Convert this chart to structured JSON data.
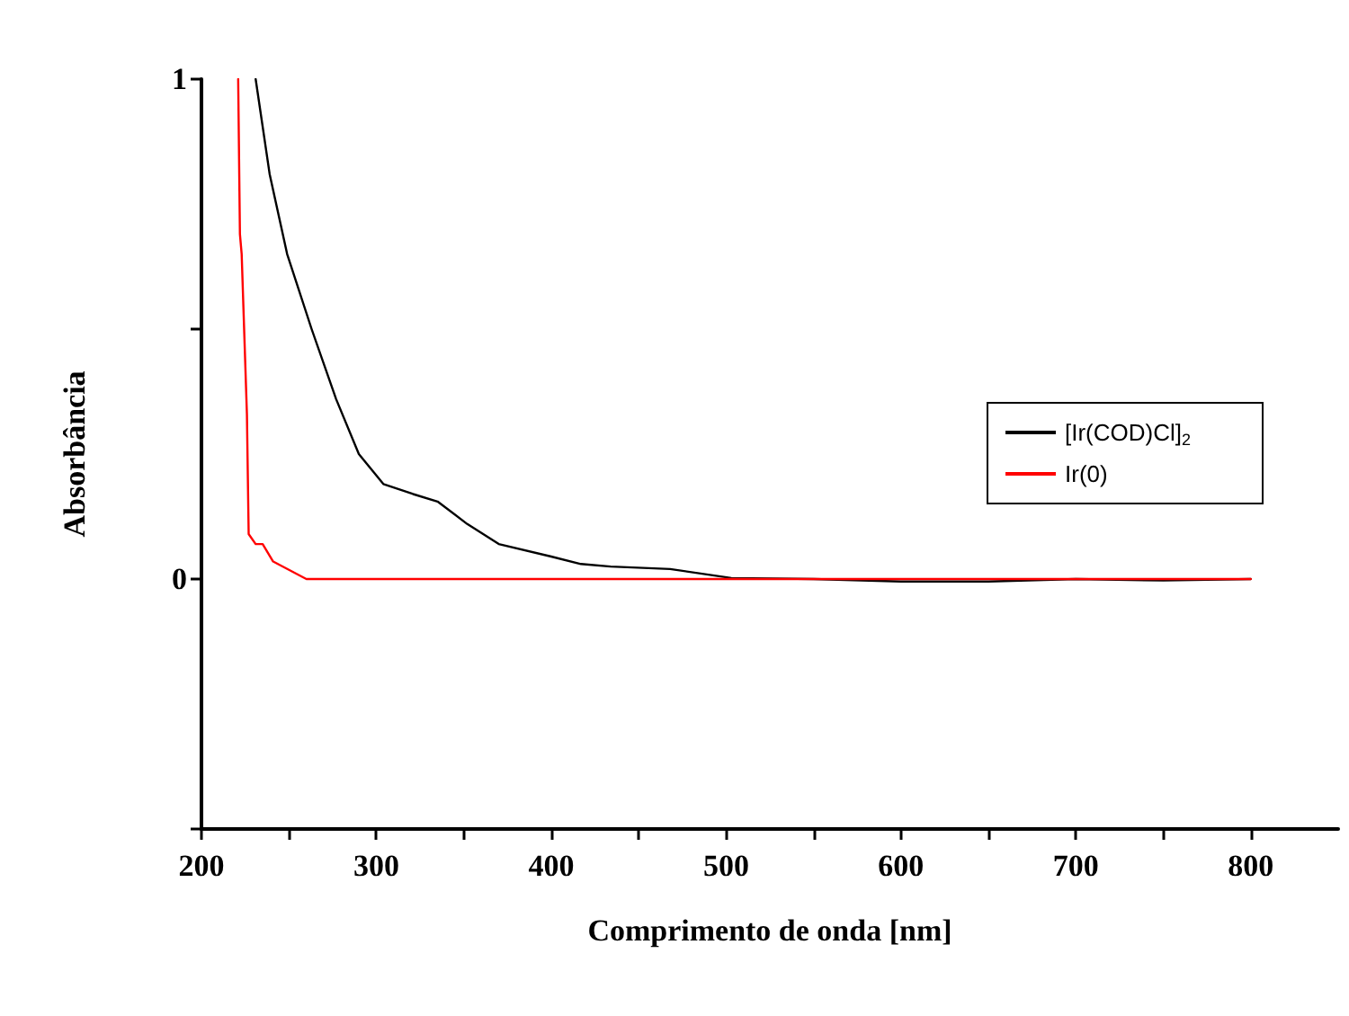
{
  "chart_data": {
    "type": "line",
    "xlabel": "Comprimento de onda [nm]",
    "ylabel": "Absorbância",
    "xlim": [
      200,
      850
    ],
    "xticks": [
      200,
      {
        "value": 250,
        "label": null
      },
      300,
      {
        "value": 350,
        "label": null
      },
      400,
      {
        "value": 450,
        "label": null
      },
      500,
      {
        "value": 550,
        "label": null
      },
      600,
      {
        "value": 650,
        "label": null
      },
      700,
      {
        "value": 750,
        "label": null
      },
      800
    ],
    "ylim": [
      -0.5,
      1
    ],
    "yticks": [
      {
        "value": -0.5,
        "label": null
      },
      0,
      {
        "value": 0.5,
        "label": null
      },
      1
    ],
    "grid": false,
    "legend": "right",
    "marker": "none",
    "line_style": "solid",
    "series": [
      {
        "name": "[Ir(COD)Cl]$_{2}$",
        "color": "#000000",
        "x": [
          231,
          239,
          249,
          263,
          277,
          290,
          304,
          321,
          335,
          352,
          370,
          400,
          417,
          434,
          468,
          503,
          550,
          600,
          650,
          700,
          750,
          800
        ],
        "values": [
          1.0,
          0.81,
          0.65,
          0.5,
          0.36,
          0.25,
          0.19,
          0.17,
          0.155,
          0.11,
          0.07,
          0.045,
          0.03,
          0.025,
          0.02,
          0.002,
          0,
          -0.005,
          -0.005,
          0,
          -0.003,
          0
        ]
      },
      {
        "name": "Ir(0)",
        "color": "#ff0000",
        "x": [
          221,
          222,
          223,
          226,
          227,
          231,
          235,
          241,
          260,
          400,
          600,
          800
        ],
        "values": [
          1.0,
          0.69,
          0.65,
          0.33,
          0.09,
          0.07,
          0.07,
          0.035,
          0,
          0,
          0,
          0
        ]
      }
    ]
  }
}
